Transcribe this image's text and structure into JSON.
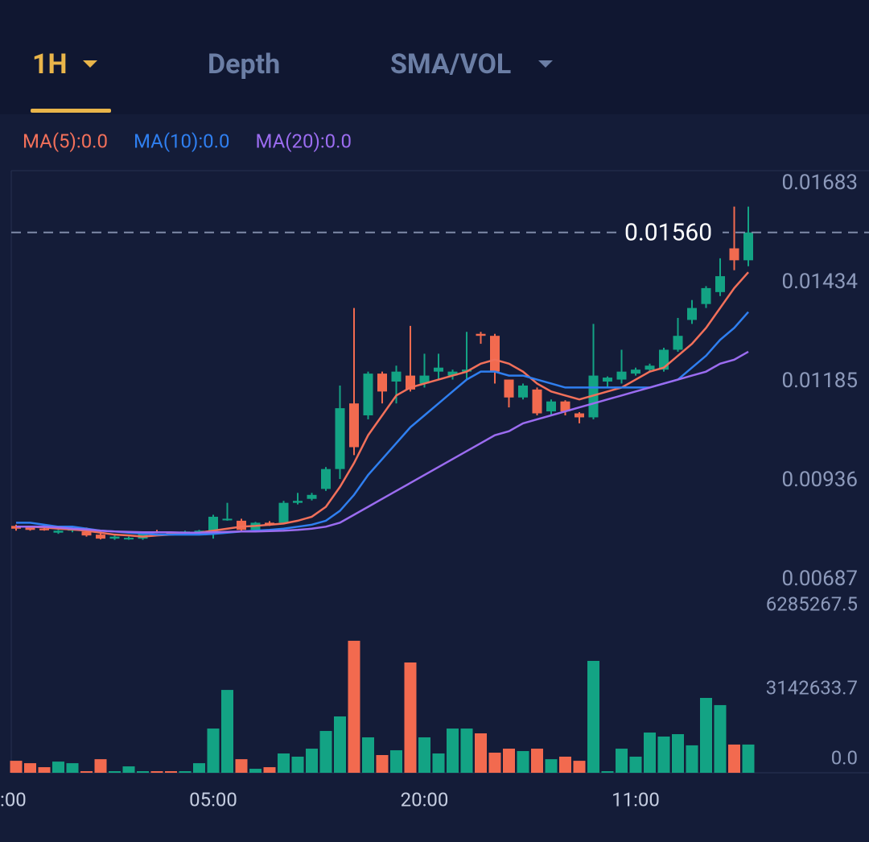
{
  "tabs": [
    {
      "label": "1H"
    },
    {
      "label": "Depth"
    },
    {
      "label": "SMA/VOL"
    }
  ],
  "chart_data": [
    {
      "type": "candlestick",
      "up_color": "#13a384",
      "down_color": "#f26a4f",
      "open": [
        0.00822,
        0.00818,
        0.00815,
        0.00805,
        0.0081,
        0.00808,
        0.008,
        0.0079,
        0.0079,
        0.0079,
        0.00808,
        0.00805,
        0.00805,
        0.00808,
        0.00808,
        0.00838,
        0.00835,
        0.00812,
        0.0083,
        0.0083,
        0.0088,
        0.0089,
        0.00915,
        0.00965,
        0.0113,
        0.011,
        0.01205,
        0.01185,
        0.012,
        0.0118,
        0.0121,
        0.012,
        0.0121,
        0.01305,
        0.013,
        0.0119,
        0.01145,
        0.01165,
        0.0111,
        0.01135,
        0.01105,
        0.01095,
        0.01185,
        0.0119,
        0.01205,
        0.01215,
        0.01215,
        0.01265,
        0.0134,
        0.0138,
        0.0141,
        0.0152,
        0.0149
      ],
      "high": [
        0.00825,
        0.0082,
        0.00818,
        0.00812,
        0.00818,
        0.00818,
        0.00803,
        0.00798,
        0.00795,
        0.00808,
        0.00812,
        0.00808,
        0.0081,
        0.00812,
        0.0085,
        0.0088,
        0.0084,
        0.00832,
        0.00834,
        0.00885,
        0.00905,
        0.00905,
        0.0097,
        0.01175,
        0.0137,
        0.0121,
        0.0121,
        0.01225,
        0.01325,
        0.01255,
        0.01255,
        0.01215,
        0.0131,
        0.0131,
        0.01305,
        0.0119,
        0.0118,
        0.0117,
        0.0114,
        0.01138,
        0.01108,
        0.0133,
        0.01198,
        0.01265,
        0.0122,
        0.0123,
        0.0127,
        0.01345,
        0.0139,
        0.01425,
        0.01495,
        0.01625,
        0.01625
      ],
      "low": [
        0.0081,
        0.0081,
        0.0081,
        0.00802,
        0.00806,
        0.00795,
        0.00788,
        0.00787,
        0.00787,
        0.00787,
        0.00803,
        0.008,
        0.00803,
        0.00805,
        0.0079,
        0.00835,
        0.0081,
        0.0081,
        0.00822,
        0.00826,
        0.00876,
        0.00886,
        0.0091,
        0.0094,
        0.01,
        0.0109,
        0.0113,
        0.0113,
        0.0116,
        0.0117,
        0.0119,
        0.0119,
        0.0119,
        0.0128,
        0.0118,
        0.0112,
        0.0114,
        0.011,
        0.011,
        0.011,
        0.0108,
        0.0109,
        0.0117,
        0.0118,
        0.012,
        0.0121,
        0.0121,
        0.0126,
        0.0133,
        0.0137,
        0.014,
        0.01465,
        0.01475
      ],
      "close": [
        0.00815,
        0.00812,
        0.00812,
        0.0081,
        0.00815,
        0.00798,
        0.0079,
        0.00795,
        0.00792,
        0.00805,
        0.00805,
        0.00802,
        0.00808,
        0.0081,
        0.00845,
        0.0084,
        0.00812,
        0.0083,
        0.00825,
        0.0088,
        0.00885,
        0.009,
        0.00965,
        0.01118,
        0.0102,
        0.01205,
        0.0116,
        0.0121,
        0.01165,
        0.012,
        0.0122,
        0.0121,
        0.01215,
        0.013,
        0.0121,
        0.01145,
        0.01175,
        0.01105,
        0.01135,
        0.0111,
        0.01095,
        0.012,
        0.01195,
        0.0121,
        0.01215,
        0.01225,
        0.01265,
        0.013,
        0.0137,
        0.0142,
        0.0145,
        0.0149,
        0.0156
      ],
      "series": [
        {
          "name": "MA(5):0.0",
          "color": "#f2705a",
          "values": [
            0.0082,
            0.0082,
            0.00818,
            0.00815,
            0.00813,
            0.0081,
            0.00805,
            0.008,
            0.00798,
            0.00795,
            0.00798,
            0.008,
            0.00803,
            0.00805,
            0.0081,
            0.00815,
            0.0082,
            0.00822,
            0.00825,
            0.00828,
            0.00835,
            0.00845,
            0.0087,
            0.0092,
            0.0098,
            0.0105,
            0.011,
            0.0115,
            0.0117,
            0.0118,
            0.0119,
            0.012,
            0.0121,
            0.0123,
            0.0124,
            0.0123,
            0.0121,
            0.0118,
            0.0116,
            0.0115,
            0.0114,
            0.0115,
            0.0116,
            0.0117,
            0.0119,
            0.0121,
            0.0122,
            0.0125,
            0.0128,
            0.0132,
            0.0137,
            0.0142,
            0.0146
          ]
        },
        {
          "name": "MA(10):0.0",
          "color": "#2f7ff0",
          "values": [
            0.0083,
            0.0083,
            0.00825,
            0.0082,
            0.0082,
            0.00815,
            0.0081,
            0.00808,
            0.00805,
            0.00803,
            0.008,
            0.008,
            0.008,
            0.008,
            0.00802,
            0.00805,
            0.00808,
            0.0081,
            0.00812,
            0.00815,
            0.0082,
            0.00825,
            0.00835,
            0.0086,
            0.009,
            0.0095,
            0.0099,
            0.0103,
            0.0107,
            0.011,
            0.0113,
            0.0116,
            0.0119,
            0.0121,
            0.0121,
            0.012,
            0.012,
            0.0119,
            0.0118,
            0.0117,
            0.0117,
            0.0117,
            0.0117,
            0.0117,
            0.0117,
            0.0117,
            0.0118,
            0.0119,
            0.0122,
            0.0125,
            0.0129,
            0.0132,
            0.0136
          ]
        },
        {
          "name": "MA(20):0.0",
          "color": "#9b6cf0",
          "values": [
            0.0082,
            0.0082,
            0.0082,
            0.00818,
            0.00815,
            0.00813,
            0.0081,
            0.00808,
            0.00807,
            0.00806,
            0.00806,
            0.00806,
            0.00805,
            0.00805,
            0.00806,
            0.00807,
            0.00808,
            0.00808,
            0.00809,
            0.0081,
            0.00812,
            0.00815,
            0.0082,
            0.0083,
            0.0085,
            0.0087,
            0.0089,
            0.0091,
            0.0093,
            0.0095,
            0.0097,
            0.0099,
            0.0101,
            0.0103,
            0.0105,
            0.0106,
            0.0108,
            0.0109,
            0.011,
            0.0111,
            0.0112,
            0.0113,
            0.0114,
            0.0115,
            0.0116,
            0.0117,
            0.0118,
            0.0119,
            0.012,
            0.0121,
            0.0123,
            0.0124,
            0.0126
          ]
        }
      ],
      "ylim": [
        0.00687,
        0.01683
      ],
      "yticks": [
        0.00687,
        0.00936,
        0.01185,
        0.01434,
        0.01683
      ],
      "last_price": {
        "value": 0.0156,
        "label": "0.01560"
      },
      "xticks": [
        {
          "value": -1,
          "label": ":00"
        },
        {
          "value": 14,
          "label": "05:00"
        },
        {
          "value": 29,
          "label": "20:00"
        },
        {
          "value": 44,
          "label": "11:00"
        }
      ]
    },
    {
      "type": "bar",
      "values": [
        450000,
        360000,
        210000,
        420000,
        360000,
        60000,
        510000,
        60000,
        240000,
        60000,
        60000,
        60000,
        60000,
        360000,
        1660000,
        3110000,
        510000,
        150000,
        210000,
        725000,
        605000,
        905000,
        1570000,
        2115000,
        4955000,
        1330000,
        665000,
        845000,
        4140000,
        1330000,
        725000,
        1660000,
        1660000,
        1480000,
        755000,
        905000,
        815000,
        905000,
        510000,
        605000,
        450000,
        4200000,
        60000,
        905000,
        605000,
        1510000,
        1360000,
        1450000,
        1030000,
        2810000,
        2540000,
        1060000,
        1060000
      ],
      "ylim": [
        0,
        6285267.5
      ],
      "yticks": [
        {
          "value": 0,
          "label": "0.0"
        },
        3142633.7,
        6285267.5
      ]
    }
  ]
}
